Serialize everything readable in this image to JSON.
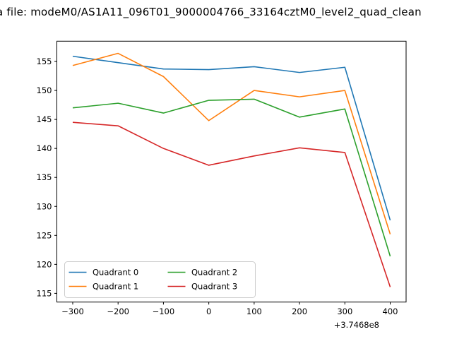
{
  "figure": {
    "title": "a file: modeM0/AS1A11_096T01_9000004766_33164cztM0_level2_quad_clean"
  },
  "chart_data": {
    "type": "line",
    "title": "a file: modeM0/AS1A11_096T01_9000004766_33164cztM0_level2_quad_clean",
    "x": [
      -300,
      -200,
      -100,
      0,
      100,
      200,
      300,
      400
    ],
    "x_offset_label": "+3.7468e8",
    "series": [
      {
        "name": "Quadrant 0",
        "color": "#1f77b4",
        "values": [
          155.9,
          154.8,
          153.7,
          153.6,
          154.1,
          153.1,
          154.0,
          127.6
        ]
      },
      {
        "name": "Quadrant 1",
        "color": "#ff7f0e",
        "values": [
          154.3,
          156.4,
          152.4,
          144.8,
          150.0,
          148.9,
          150.0,
          125.2
        ]
      },
      {
        "name": "Quadrant 2",
        "color": "#2ca02c",
        "values": [
          147.0,
          147.8,
          146.1,
          148.3,
          148.5,
          145.4,
          146.8,
          121.4
        ]
      },
      {
        "name": "Quadrant 3",
        "color": "#d62728",
        "values": [
          144.5,
          143.9,
          140.0,
          137.1,
          138.7,
          140.1,
          139.3,
          116.1
        ]
      }
    ],
    "xticks": [
      -300,
      -200,
      -100,
      0,
      100,
      200,
      300,
      400
    ],
    "yticks": [
      115,
      120,
      125,
      130,
      135,
      140,
      145,
      150,
      155
    ],
    "xlim": [
      -335,
      435
    ],
    "ylim": [
      113.5,
      158.5
    ],
    "grid": false,
    "legend": {
      "position": "lower left",
      "ncol": 2,
      "labels": [
        "Quadrant 0",
        "Quadrant 1",
        "Quadrant 2",
        "Quadrant 3"
      ]
    },
    "colors": {
      "axes_edge": "#000000",
      "tick_text": "#000000",
      "legend_edge": "#cccccc",
      "background": "#ffffff"
    }
  }
}
